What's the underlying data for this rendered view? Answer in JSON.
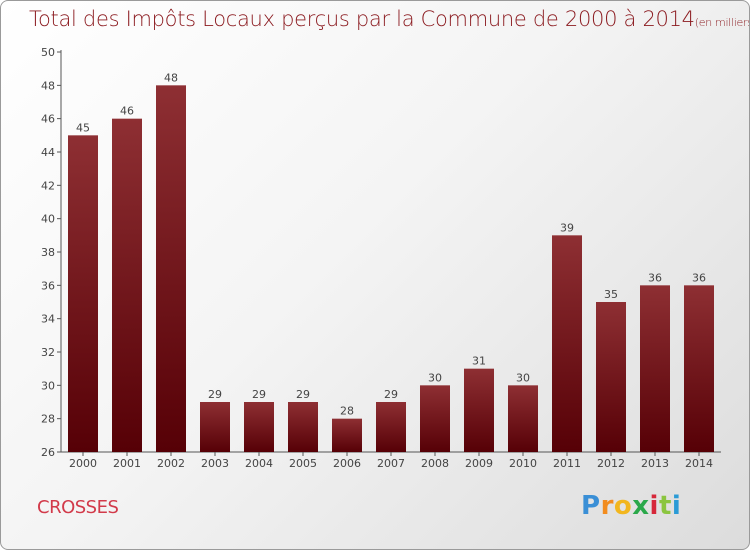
{
  "title": "Total des Impôts Locaux perçus par la Commune de 2000 à 2014",
  "title_unit": "(en milliers d'€)",
  "commune": "CROSSES",
  "logo": {
    "letters": [
      "P",
      "r",
      "o",
      "x",
      "i",
      "t",
      "i"
    ],
    "colors": [
      "#3a8fd6",
      "#f28c1e",
      "#f2b61e",
      "#2aa84a",
      "#d6283a",
      "#8bc53f",
      "#2b9bd6"
    ]
  },
  "colors": {
    "bar_top": "#8e2f33",
    "bar_bottom": "#560006",
    "axis": "#555555",
    "title": "#8b1a1f",
    "commune": "#d23a4a"
  },
  "chart_data": {
    "type": "bar",
    "title": "Total des Impôts Locaux perçus par la Commune de 2000 à 2014",
    "xlabel": "",
    "ylabel": "",
    "categories": [
      "2000",
      "2001",
      "2002",
      "2003",
      "2004",
      "2005",
      "2006",
      "2007",
      "2008",
      "2009",
      "2010",
      "2011",
      "2012",
      "2013",
      "2014"
    ],
    "values": [
      45,
      46,
      48,
      29,
      29,
      29,
      28,
      29,
      30,
      31,
      30,
      39,
      35,
      36,
      36
    ],
    "ylim": [
      26,
      50
    ],
    "yticks": [
      26,
      28,
      30,
      32,
      34,
      36,
      38,
      40,
      42,
      44,
      46,
      48,
      50
    ],
    "grid": false,
    "legend": "none"
  }
}
